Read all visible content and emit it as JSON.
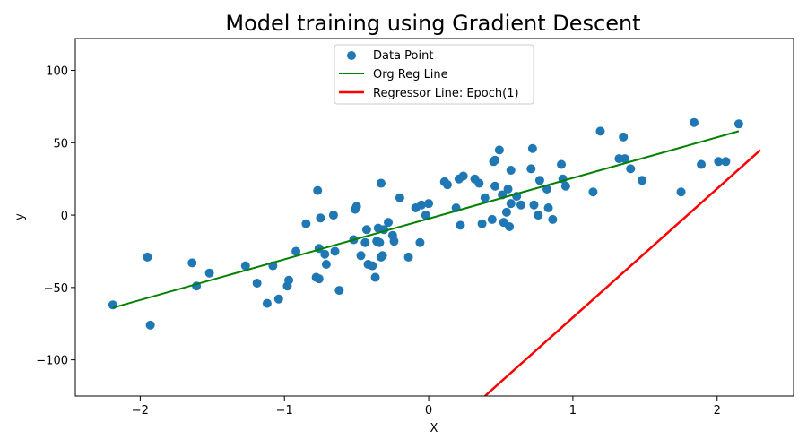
{
  "chart_data": {
    "type": "scatter",
    "title": "Model training using Gradient Descent",
    "xlabel": "X",
    "ylabel": "y",
    "xlim": [
      -2.45,
      2.53
    ],
    "ylim": [
      -125,
      122
    ],
    "xticks": [
      -2,
      -1,
      0,
      1,
      2
    ],
    "yticks": [
      -100,
      -50,
      0,
      50,
      100
    ],
    "xtick_labels": [
      "−2",
      "−1",
      "0",
      "1",
      "2"
    ],
    "ytick_labels": [
      "−100",
      "−50",
      "0",
      "50",
      "100"
    ],
    "legend_position": "upper-center",
    "series": [
      {
        "name": "Data Point",
        "kind": "scatter",
        "color": "#1f77b4",
        "points": [
          [
            -2.19,
            -62
          ],
          [
            -1.95,
            -29
          ],
          [
            -1.93,
            -76
          ],
          [
            -1.64,
            -33
          ],
          [
            -1.61,
            -49
          ],
          [
            -1.52,
            -40
          ],
          [
            -1.27,
            -35
          ],
          [
            -1.19,
            -47
          ],
          [
            -1.12,
            -61
          ],
          [
            -1.08,
            -35
          ],
          [
            -1.04,
            -58
          ],
          [
            -0.98,
            -49
          ],
          [
            -0.97,
            -45
          ],
          [
            -0.92,
            -25
          ],
          [
            -0.85,
            -6
          ],
          [
            -0.78,
            -43
          ],
          [
            -0.77,
            17
          ],
          [
            -0.76,
            -44
          ],
          [
            -0.76,
            -23
          ],
          [
            -0.75,
            -2
          ],
          [
            -0.72,
            -27
          ],
          [
            -0.71,
            -34
          ],
          [
            -0.66,
            0
          ],
          [
            -0.65,
            -25
          ],
          [
            -0.62,
            -52
          ],
          [
            -0.52,
            -17
          ],
          [
            -0.51,
            4
          ],
          [
            -0.5,
            6
          ],
          [
            -0.47,
            -28
          ],
          [
            -0.44,
            -19
          ],
          [
            -0.43,
            -10
          ],
          [
            -0.42,
            -34
          ],
          [
            -0.39,
            -35
          ],
          [
            -0.37,
            -43
          ],
          [
            -0.36,
            -18
          ],
          [
            -0.35,
            -9
          ],
          [
            -0.34,
            -19
          ],
          [
            -0.33,
            22
          ],
          [
            -0.33,
            -29
          ],
          [
            -0.32,
            -28
          ],
          [
            -0.31,
            -10
          ],
          [
            -0.28,
            -5
          ],
          [
            -0.25,
            -14
          ],
          [
            -0.24,
            -18
          ],
          [
            -0.2,
            12
          ],
          [
            -0.14,
            -29
          ],
          [
            -0.09,
            5
          ],
          [
            -0.06,
            -19
          ],
          [
            -0.05,
            7
          ],
          [
            -0.02,
            0
          ],
          [
            0,
            8
          ],
          [
            0.11,
            23
          ],
          [
            0.13,
            21
          ],
          [
            0.19,
            5
          ],
          [
            0.21,
            25
          ],
          [
            0.22,
            -7
          ],
          [
            0.24,
            27
          ],
          [
            0.32,
            25
          ],
          [
            0.35,
            22
          ],
          [
            0.37,
            -6
          ],
          [
            0.39,
            12
          ],
          [
            0.44,
            -3
          ],
          [
            0.45,
            37
          ],
          [
            0.46,
            38
          ],
          [
            0.46,
            20
          ],
          [
            0.49,
            45
          ],
          [
            0.51,
            14
          ],
          [
            0.52,
            -5
          ],
          [
            0.54,
            2
          ],
          [
            0.55,
            18
          ],
          [
            0.56,
            -8
          ],
          [
            0.57,
            8
          ],
          [
            0.57,
            31
          ],
          [
            0.61,
            13
          ],
          [
            0.64,
            7
          ],
          [
            0.71,
            32
          ],
          [
            0.72,
            46
          ],
          [
            0.73,
            7
          ],
          [
            0.76,
            0
          ],
          [
            0.77,
            24
          ],
          [
            0.82,
            18
          ],
          [
            0.83,
            5
          ],
          [
            0.86,
            -3
          ],
          [
            0.92,
            35
          ],
          [
            0.93,
            25
          ],
          [
            0.95,
            20
          ],
          [
            1.14,
            16
          ],
          [
            1.19,
            58
          ],
          [
            1.32,
            39
          ],
          [
            1.35,
            54
          ],
          [
            1.36,
            39
          ],
          [
            1.4,
            32
          ],
          [
            1.48,
            24
          ],
          [
            1.75,
            16
          ],
          [
            1.84,
            64
          ],
          [
            1.89,
            35
          ],
          [
            2.01,
            37
          ],
          [
            2.06,
            37
          ],
          [
            2.15,
            63
          ]
        ]
      },
      {
        "name": "Org Reg Line",
        "kind": "line",
        "color": "#008000",
        "points": [
          [
            -2.19,
            -64
          ],
          [
            2.15,
            58
          ]
        ]
      },
      {
        "name": "Regressor Line: Epoch(1)",
        "kind": "line",
        "color": "#ff0000",
        "points": [
          [
            0.39,
            -125
          ],
          [
            2.3,
            45
          ]
        ]
      }
    ]
  }
}
